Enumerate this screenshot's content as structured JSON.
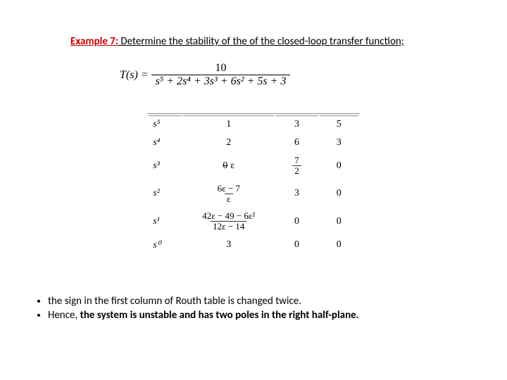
{
  "title": {
    "example_label": "Example 7:",
    "rest": " Determine the stability of the of the closed-loop transfer function;"
  },
  "equation": {
    "lhs": "T(s) = ",
    "numerator": "10",
    "denominator": "s⁵ + 2s⁴ + 3s³ + 6s² + 5s + 3",
    "color": "#000000",
    "fontsize": 16
  },
  "routh": {
    "rows": [
      {
        "power": "s⁵",
        "c1": "1",
        "c2": "3",
        "c3": "5"
      },
      {
        "power": "s⁴",
        "c1": "2",
        "c2": "6",
        "c3": "3"
      },
      {
        "power": "s³",
        "c1_strike": "0",
        "c1_eps": "ε",
        "c2_frac": {
          "n": "7",
          "d": "2"
        },
        "c3": "0"
      },
      {
        "power": "s²",
        "c1_frac": {
          "n": "6ε − 7",
          "d": "ε"
        },
        "c2": "3",
        "c3": "0"
      },
      {
        "power": "s¹",
        "c1_frac": {
          "n": "42ε − 49 − 6ε²",
          "d": "12ε − 14"
        },
        "c2": "0",
        "c3": "0"
      },
      {
        "power": "s⁰",
        "c1": "3",
        "c2": "0",
        "c3": "0"
      }
    ],
    "border_color": "#888888",
    "text_color": "#333333",
    "fontsize": 14
  },
  "bullets": {
    "items": [
      {
        "text": "the sign in the first column of Routh table is changed twice.",
        "bold": false
      },
      {
        "prefix": "Hence, ",
        "bold_text": "the system is unstable and has two poles in the right half-plane."
      }
    ],
    "fontsize": 15
  },
  "colors": {
    "example_label": "#c00000",
    "background": "#ffffff",
    "text": "#000000"
  }
}
